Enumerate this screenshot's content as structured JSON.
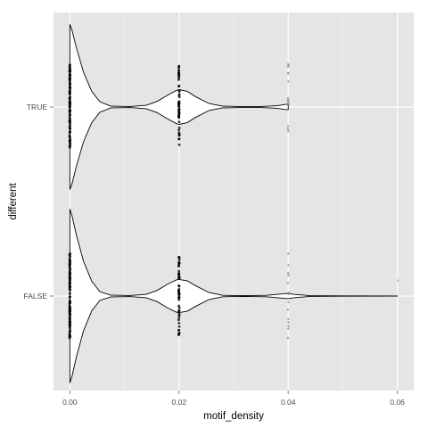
{
  "chart_data": {
    "type": "violin",
    "orientation": "horizontal",
    "xlabel": "motif_density",
    "ylabel": "different",
    "xlim": [
      -0.003,
      0.063
    ],
    "x_ticks": [
      0.0,
      0.02,
      0.04,
      0.06
    ],
    "x_tick_labels": [
      "0.00",
      "0.02",
      "0.04",
      "0.06"
    ],
    "categories": [
      "TRUE",
      "FALSE"
    ],
    "grid": true,
    "panel_background": "#e5e5e5",
    "grid_color": "#ffffff",
    "series": [
      {
        "category": "TRUE",
        "point_values": [
          0.0,
          0.02,
          0.04
        ],
        "density_profile": [
          [
            0.0,
            0.95
          ],
          [
            0.0004,
            0.88
          ],
          [
            0.0012,
            0.68
          ],
          [
            0.0025,
            0.4
          ],
          [
            0.004,
            0.18
          ],
          [
            0.0055,
            0.06
          ],
          [
            0.0075,
            0.01
          ],
          [
            0.011,
            0.006
          ],
          [
            0.014,
            0.02
          ],
          [
            0.016,
            0.065
          ],
          [
            0.018,
            0.14
          ],
          [
            0.0195,
            0.19
          ],
          [
            0.02,
            0.2
          ],
          [
            0.0215,
            0.18
          ],
          [
            0.023,
            0.12
          ],
          [
            0.0255,
            0.04
          ],
          [
            0.028,
            0.01
          ],
          [
            0.031,
            0.006
          ],
          [
            0.035,
            0.006
          ],
          [
            0.038,
            0.015
          ],
          [
            0.0395,
            0.03
          ],
          [
            0.04,
            0.03
          ]
        ]
      },
      {
        "category": "FALSE",
        "point_values": [
          0.0,
          0.02,
          0.04,
          0.06
        ],
        "density_profile": [
          [
            0.0,
            1.0
          ],
          [
            0.0004,
            0.92
          ],
          [
            0.0012,
            0.7
          ],
          [
            0.0025,
            0.4
          ],
          [
            0.004,
            0.17
          ],
          [
            0.0055,
            0.05
          ],
          [
            0.0075,
            0.01
          ],
          [
            0.011,
            0.006
          ],
          [
            0.014,
            0.02
          ],
          [
            0.016,
            0.065
          ],
          [
            0.018,
            0.14
          ],
          [
            0.0195,
            0.185
          ],
          [
            0.02,
            0.19
          ],
          [
            0.0215,
            0.175
          ],
          [
            0.023,
            0.12
          ],
          [
            0.0255,
            0.04
          ],
          [
            0.028,
            0.008
          ],
          [
            0.032,
            0.004
          ],
          [
            0.036,
            0.008
          ],
          [
            0.039,
            0.025
          ],
          [
            0.04,
            0.03
          ],
          [
            0.041,
            0.02
          ],
          [
            0.044,
            0.004
          ],
          [
            0.05,
            0.002
          ],
          [
            0.06,
            0.001
          ]
        ]
      }
    ]
  }
}
